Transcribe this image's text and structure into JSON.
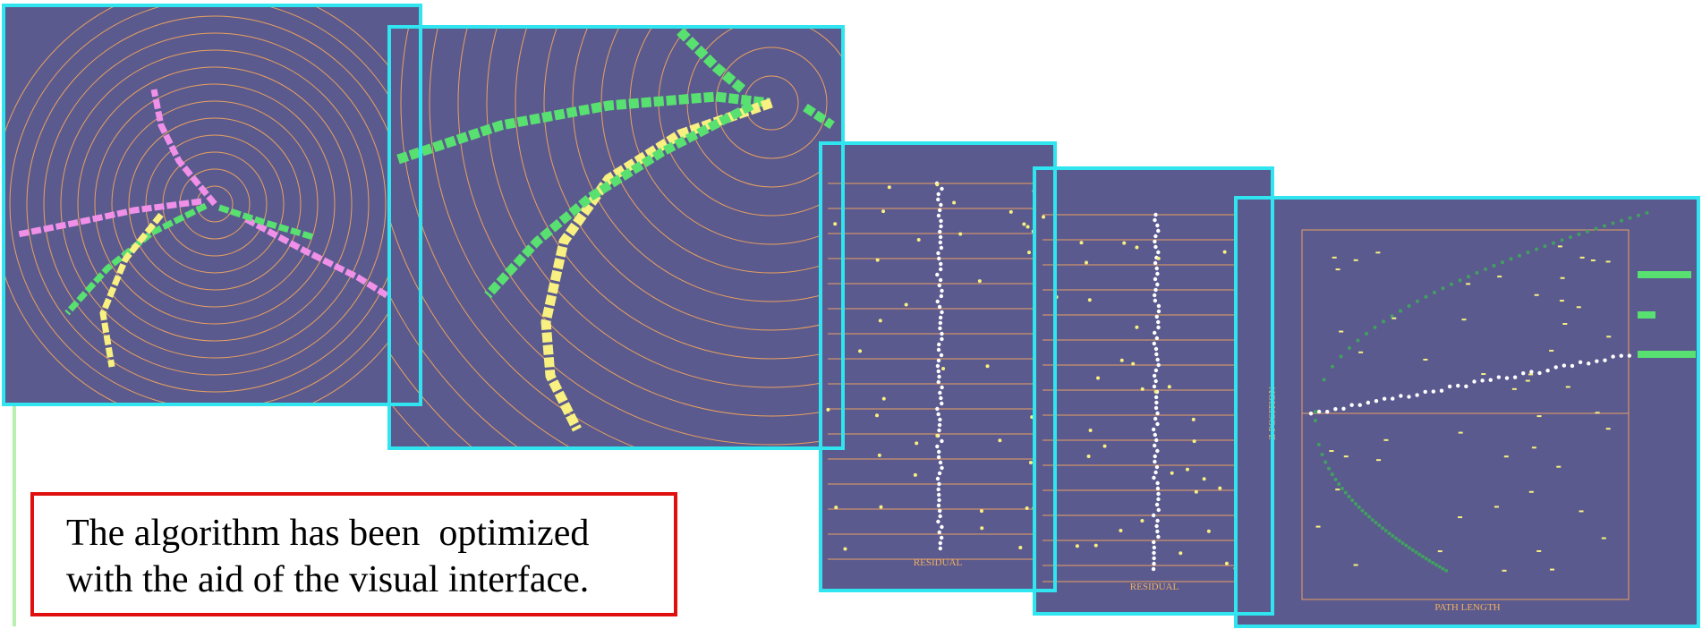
{
  "panels": [
    {
      "axis_label": "RESIDUAL"
    },
    {
      "axis_label": "RESIDUAL"
    },
    {
      "x_label": "PATH LENGTH",
      "y_label": "Z POSITION"
    }
  ],
  "caption": {
    "lines": [
      "The algorithm has been  optimized",
      "with the aid of the visual interface."
    ]
  }
}
